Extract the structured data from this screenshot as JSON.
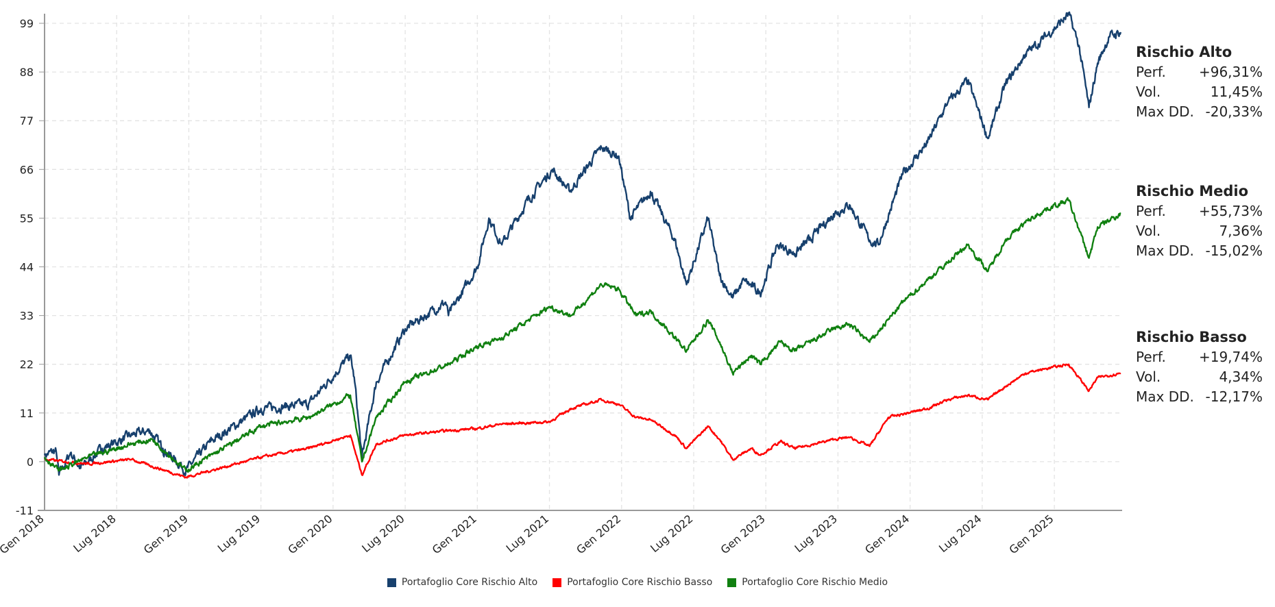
{
  "chart_data": {
    "type": "line",
    "ylim": [
      -11,
      99
    ],
    "yticks": [
      "99",
      "88",
      "77",
      "66",
      "55",
      "44",
      "33",
      "22",
      "11",
      "0",
      "-11"
    ],
    "ytick_values": [
      99,
      88,
      77,
      66,
      55,
      44,
      33,
      22,
      11,
      0,
      -11
    ],
    "xlim": [
      2018.0,
      2025.47
    ],
    "xticks": [
      "Gen 2018",
      "Lug 2018",
      "Gen 2019",
      "Lug 2019",
      "Gen 2020",
      "Lug 2020",
      "Gen 2021",
      "Lug 2021",
      "Gen 2022",
      "Lug 2022",
      "Gen 2023",
      "Lug 2023",
      "Gen 2024",
      "Lug 2024",
      "Gen 2025"
    ],
    "grid": true,
    "legend_position": "bottom-center",
    "series": [
      {
        "name": "Portafoglio Core Rischio Alto",
        "color": "#17406d",
        "points": [
          [
            2018.0,
            1.5
          ],
          [
            2018.08,
            2.5
          ],
          [
            2018.1,
            -3
          ],
          [
            2018.18,
            2
          ],
          [
            2018.25,
            -1.5
          ],
          [
            2018.4,
            3
          ],
          [
            2018.6,
            6
          ],
          [
            2018.73,
            7
          ],
          [
            2018.82,
            3
          ],
          [
            2018.98,
            -2
          ],
          [
            2019.15,
            4.5
          ],
          [
            2019.5,
            12
          ],
          [
            2019.83,
            13
          ],
          [
            2020.12,
            24
          ],
          [
            2020.15,
            18
          ],
          [
            2020.2,
            1
          ],
          [
            2020.3,
            18
          ],
          [
            2020.5,
            30
          ],
          [
            2020.78,
            36
          ],
          [
            2020.8,
            33
          ],
          [
            2021.0,
            44
          ],
          [
            2021.08,
            55
          ],
          [
            2021.17,
            49
          ],
          [
            2021.35,
            59
          ],
          [
            2021.52,
            66
          ],
          [
            2021.64,
            61
          ],
          [
            2021.86,
            71
          ],
          [
            2021.98,
            69
          ],
          [
            2022.06,
            55
          ],
          [
            2022.2,
            61
          ],
          [
            2022.37,
            50
          ],
          [
            2022.45,
            40
          ],
          [
            2022.6,
            55
          ],
          [
            2022.68,
            42
          ],
          [
            2022.77,
            37
          ],
          [
            2022.85,
            41
          ],
          [
            2022.96,
            38
          ],
          [
            2023.08,
            49
          ],
          [
            2023.2,
            47
          ],
          [
            2023.3,
            50
          ],
          [
            2023.47,
            56
          ],
          [
            2023.58,
            58
          ],
          [
            2023.72,
            50
          ],
          [
            2023.78,
            49
          ],
          [
            2023.95,
            65
          ],
          [
            2024.12,
            72
          ],
          [
            2024.26,
            81
          ],
          [
            2024.4,
            86
          ],
          [
            2024.54,
            73
          ],
          [
            2024.66,
            85
          ],
          [
            2024.8,
            92
          ],
          [
            2024.94,
            96
          ],
          [
            2025.1,
            101
          ],
          [
            2025.17,
            94
          ],
          [
            2025.24,
            80
          ],
          [
            2025.3,
            90
          ],
          [
            2025.38,
            96
          ],
          [
            2025.46,
            97
          ]
        ]
      },
      {
        "name": "Portafoglio Core Rischio Basso",
        "color": "#ff0000",
        "points": [
          [
            2018.0,
            0.5
          ],
          [
            2018.3,
            -0.5
          ],
          [
            2018.6,
            0.5
          ],
          [
            2018.98,
            -3.5
          ],
          [
            2019.5,
            1
          ],
          [
            2019.83,
            3
          ],
          [
            2020.12,
            6
          ],
          [
            2020.2,
            -3
          ],
          [
            2020.3,
            4
          ],
          [
            2020.5,
            6
          ],
          [
            2020.8,
            7
          ],
          [
            2021.0,
            7.5
          ],
          [
            2021.17,
            8.5
          ],
          [
            2021.5,
            9
          ],
          [
            2021.65,
            12
          ],
          [
            2021.86,
            14
          ],
          [
            2021.98,
            13
          ],
          [
            2022.1,
            10
          ],
          [
            2022.2,
            9.5
          ],
          [
            2022.37,
            6
          ],
          [
            2022.45,
            3
          ],
          [
            2022.6,
            8
          ],
          [
            2022.68,
            5
          ],
          [
            2022.77,
            0.5
          ],
          [
            2022.9,
            3
          ],
          [
            2022.96,
            1.5
          ],
          [
            2023.1,
            4.5
          ],
          [
            2023.2,
            3
          ],
          [
            2023.47,
            5
          ],
          [
            2023.58,
            5.5
          ],
          [
            2023.72,
            3.5
          ],
          [
            2023.85,
            10
          ],
          [
            2024.12,
            12
          ],
          [
            2024.26,
            14
          ],
          [
            2024.4,
            15
          ],
          [
            2024.54,
            14
          ],
          [
            2024.66,
            17
          ],
          [
            2024.8,
            20
          ],
          [
            2024.94,
            21
          ],
          [
            2025.1,
            22
          ],
          [
            2025.24,
            16
          ],
          [
            2025.3,
            19
          ],
          [
            2025.46,
            20
          ]
        ]
      },
      {
        "name": "Portafoglio Core Rischio Medio",
        "color": "#108010",
        "points": [
          [
            2018.0,
            1
          ],
          [
            2018.1,
            -2
          ],
          [
            2018.3,
            1
          ],
          [
            2018.6,
            4
          ],
          [
            2018.75,
            5
          ],
          [
            2018.98,
            -2
          ],
          [
            2019.5,
            8
          ],
          [
            2019.83,
            10
          ],
          [
            2020.12,
            15
          ],
          [
            2020.2,
            0
          ],
          [
            2020.3,
            10
          ],
          [
            2020.5,
            18
          ],
          [
            2020.8,
            22
          ],
          [
            2021.0,
            26
          ],
          [
            2021.17,
            28
          ],
          [
            2021.5,
            35
          ],
          [
            2021.65,
            33
          ],
          [
            2021.86,
            40
          ],
          [
            2021.98,
            39
          ],
          [
            2022.1,
            33
          ],
          [
            2022.2,
            34
          ],
          [
            2022.37,
            28
          ],
          [
            2022.45,
            25
          ],
          [
            2022.6,
            32
          ],
          [
            2022.68,
            27
          ],
          [
            2022.77,
            20
          ],
          [
            2022.9,
            24
          ],
          [
            2022.96,
            22
          ],
          [
            2023.1,
            27
          ],
          [
            2023.2,
            25
          ],
          [
            2023.47,
            30
          ],
          [
            2023.58,
            31
          ],
          [
            2023.72,
            27
          ],
          [
            2023.95,
            36
          ],
          [
            2024.12,
            41
          ],
          [
            2024.26,
            45
          ],
          [
            2024.4,
            49
          ],
          [
            2024.54,
            43
          ],
          [
            2024.66,
            50
          ],
          [
            2024.8,
            54
          ],
          [
            2024.94,
            57
          ],
          [
            2025.1,
            59
          ],
          [
            2025.24,
            46
          ],
          [
            2025.3,
            53
          ],
          [
            2025.46,
            56
          ]
        ]
      }
    ]
  },
  "stats": [
    {
      "title": "Rischio Alto",
      "perf_label": "Perf.",
      "perf": "+96,31%",
      "vol_label": "Vol.",
      "vol": "11,45%",
      "dd_label": "Max DD.",
      "dd": "-20,33%"
    },
    {
      "title": "Rischio Medio",
      "perf_label": "Perf.",
      "perf": "+55,73%",
      "vol_label": "Vol.",
      "vol": "7,36%",
      "dd_label": "Max DD.",
      "dd": "-15,02%"
    },
    {
      "title": "Rischio Basso",
      "perf_label": "Perf.",
      "perf": "+19,74%",
      "vol_label": "Vol.",
      "vol": "4,34%",
      "dd_label": "Max DD.",
      "dd": "-12,17%"
    }
  ],
  "legend": [
    {
      "label": "Portafoglio Core Rischio Alto",
      "color": "#17406d"
    },
    {
      "label": "Portafoglio Core Rischio Basso",
      "color": "#ff0000"
    },
    {
      "label": "Portafoglio Core Rischio Medio",
      "color": "#108010"
    }
  ]
}
